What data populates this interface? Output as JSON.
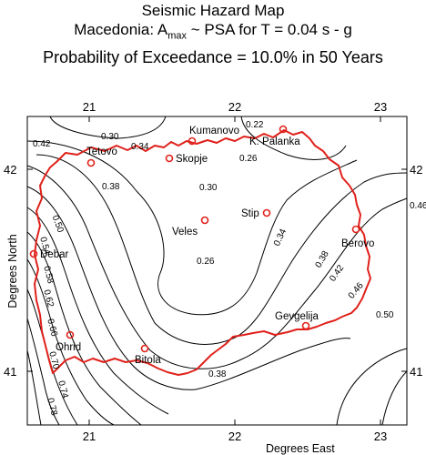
{
  "title": {
    "line1": "Seismic Hazard Map",
    "line2_prefix": "Macedonia: A",
    "line2_sub": "max",
    "line2_suffix": " ~ PSA for T = 0.04 s - g",
    "line3": "Probability of Exceedance = 10.0% in 50 Years"
  },
  "axes": {
    "x_label": "Degrees  East",
    "y_label": "Degrees  North",
    "x_ticks": [
      "21",
      "22",
      "23"
    ],
    "y_ticks": [
      "42",
      "41"
    ]
  },
  "cities": [
    {
      "name": "Kumanovo"
    },
    {
      "name": "K.  Palanka"
    },
    {
      "name": "Tetovo"
    },
    {
      "name": "Skopje"
    },
    {
      "name": "Stip"
    },
    {
      "name": "Veles"
    },
    {
      "name": "Berovo"
    },
    {
      "name": "Debar"
    },
    {
      "name": "Gevgelija"
    },
    {
      "name": "Ohrid"
    },
    {
      "name": "Bitola"
    }
  ],
  "contour_labels": [
    "0.30",
    "0.22",
    "0.34",
    "0.26",
    "0.42",
    "0.38",
    "0.30",
    "0.46",
    "0.34",
    "0.50",
    "0.26",
    "0.54",
    "0.38",
    "0.58",
    "0.42",
    "0.62",
    "0.46",
    "0.66",
    "0.50",
    "0.70",
    "0.38",
    "0.74",
    "0.78"
  ],
  "colors": {
    "border": "#e0211b",
    "contour": "#000000",
    "city_marker": "#e0211b"
  }
}
